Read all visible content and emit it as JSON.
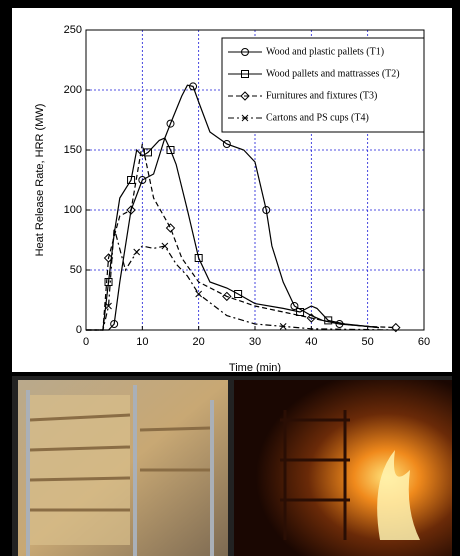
{
  "chart_data": {
    "type": "line",
    "xlabel": "Time (min)",
    "ylabel": "Heat Release Rate, HRR (MW)",
    "xlim": [
      0,
      60
    ],
    "xticks": [
      0,
      10,
      20,
      30,
      40,
      50,
      60
    ],
    "ylim": [
      0,
      250
    ],
    "yticks": [
      0,
      50,
      100,
      150,
      200,
      250
    ],
    "grid": true,
    "grid_color": "#1a1ad8",
    "legend": "upper right",
    "series": [
      {
        "name": "Wood and plastic pallets (T1)",
        "color": "#000000",
        "linestyle": "solid",
        "marker": "circle",
        "x": [
          0,
          4,
          5,
          6,
          8,
          10,
          12,
          14,
          15,
          17,
          18,
          19,
          20,
          22,
          25,
          28,
          30,
          32,
          33,
          35,
          37,
          40,
          42,
          45,
          50,
          52
        ],
        "values": [
          0,
          0,
          5,
          40,
          100,
          125,
          130,
          160,
          172,
          195,
          204,
          203,
          190,
          165,
          155,
          150,
          140,
          100,
          70,
          40,
          20,
          12,
          8,
          5,
          3,
          2
        ]
      },
      {
        "name": "Wood pallets and mattrasses (T2)",
        "color": "#000000",
        "linestyle": "solid",
        "marker": "square",
        "x": [
          0,
          3,
          4,
          5,
          6,
          8,
          9,
          10,
          11,
          13,
          14,
          15,
          16,
          18,
          20,
          22,
          25,
          27,
          30,
          35,
          38,
          40,
          41,
          43,
          46,
          52
        ],
        "values": [
          0,
          0,
          40,
          80,
          110,
          125,
          150,
          145,
          148,
          158,
          160,
          150,
          138,
          100,
          60,
          40,
          35,
          30,
          22,
          18,
          15,
          20,
          18,
          8,
          5,
          2
        ]
      },
      {
        "name": "Furnitures and fixtures (T3)",
        "color": "#000000",
        "linestyle": "dashed",
        "marker": "diamond",
        "x": [
          0,
          3,
          4,
          5,
          6,
          8,
          10,
          12,
          15,
          17,
          20,
          25,
          30,
          35,
          40,
          45,
          50,
          55
        ],
        "values": [
          0,
          0,
          60,
          78,
          95,
          100,
          155,
          110,
          85,
          60,
          40,
          28,
          20,
          15,
          10,
          5,
          3,
          2
        ]
      },
      {
        "name": "Cartons and PS cups (T4)",
        "color": "#000000",
        "linestyle": "dashdot",
        "marker": "x",
        "x": [
          0,
          3,
          4,
          5,
          7,
          9,
          10,
          12,
          14,
          16,
          18,
          20,
          25,
          30,
          35,
          40,
          55
        ],
        "values": [
          0,
          0,
          20,
          85,
          50,
          65,
          70,
          68,
          70,
          55,
          45,
          30,
          12,
          5,
          3,
          1,
          0
        ]
      }
    ]
  }
}
